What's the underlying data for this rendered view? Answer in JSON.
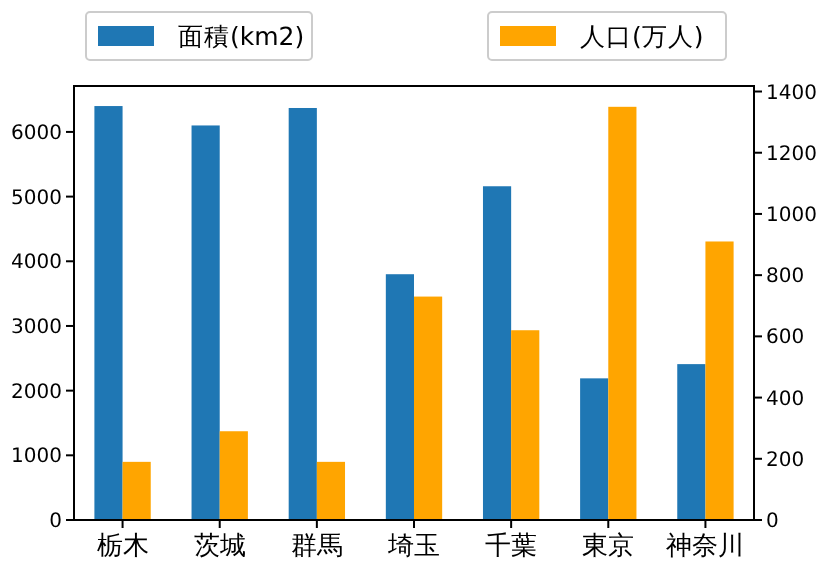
{
  "chart_data": {
    "type": "bar",
    "categories": [
      "栃木",
      "茨城",
      "群馬",
      "埼玉",
      "千葉",
      "東京",
      "神奈川"
    ],
    "series": [
      {
        "name": "面積(km2)",
        "color": "#1f77b4",
        "values": [
          6400,
          6100,
          6370,
          3800,
          5160,
          2190,
          2410
        ]
      },
      {
        "name": "人口(万人)",
        "color": "#ffa500",
        "axis": "y2",
        "values": [
          190,
          290,
          190,
          730,
          620,
          1350,
          910
        ]
      }
    ],
    "ylim": [
      0,
      6710
    ],
    "yticks": [
      0,
      1000,
      2000,
      3000,
      4000,
      5000,
      6000
    ],
    "y2lim": [
      0,
      1418
    ],
    "y2ticks": [
      0,
      200,
      400,
      600,
      800,
      1000,
      1200,
      1400
    ],
    "legend": "top",
    "grid": false
  }
}
